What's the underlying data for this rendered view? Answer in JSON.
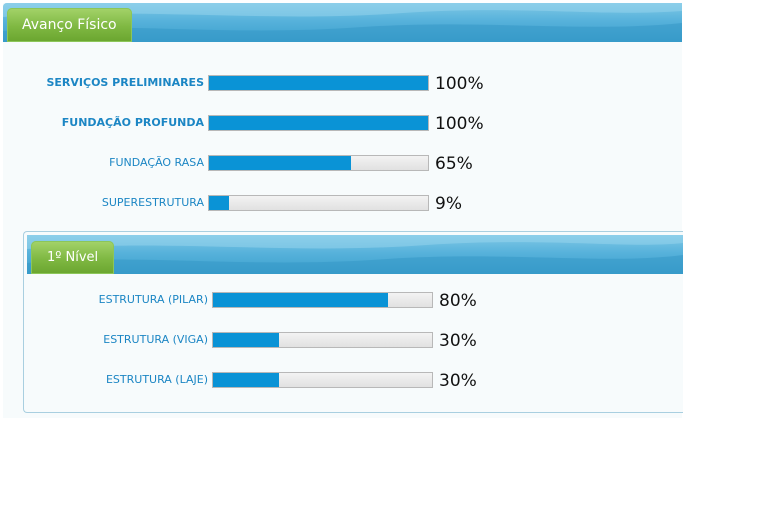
{
  "panel": {
    "title": "Avanço Físico",
    "items": [
      {
        "label": "SERVIÇOS PRELIMINARES",
        "percent_label": "100%",
        "progress": 1.0
      },
      {
        "label": "FUNDAÇÃO PROFUNDA",
        "percent_label": "100%",
        "progress": 1.0
      },
      {
        "label": "FUNDAÇÃO RASA",
        "percent_label": "65%",
        "progress": 0.65
      },
      {
        "label": "SUPERESTRUTURA",
        "percent_label": "9%",
        "progress": 0.09
      }
    ]
  },
  "subpanel": {
    "title": "1º Nível",
    "items": [
      {
        "label": "ESTRUTURA (PILAR)",
        "percent_label": "80%",
        "progress": 0.8
      },
      {
        "label": "ESTRUTURA (VIGA)",
        "percent_label": "30%",
        "progress": 0.3
      },
      {
        "label": "ESTRUTURA (LAJE)",
        "percent_label": "30%",
        "progress": 0.3
      }
    ]
  },
  "colors": {
    "bar_fill": "#0a93d6",
    "label_text": "#1c86c4",
    "tab_green": "#7fb842",
    "header_blue": "#57b2db"
  }
}
